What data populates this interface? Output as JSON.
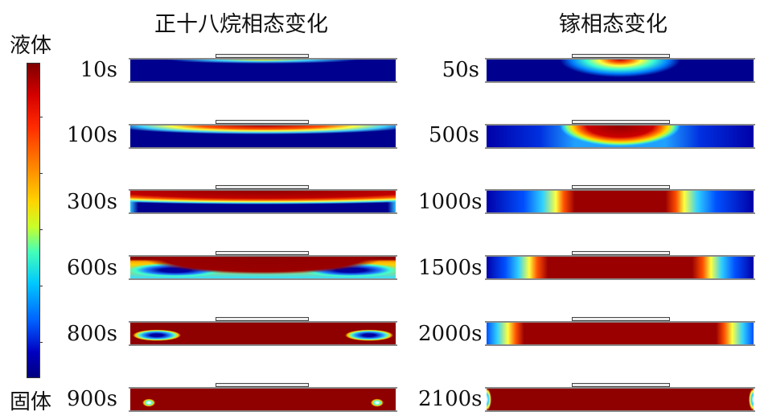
{
  "titles": {
    "left": "正十八烷相态变化",
    "right": "镓相态变化"
  },
  "colorbar": {
    "top_label": "液体",
    "bottom_label": "固体",
    "colors": [
      "#7f0000",
      "#ff0000",
      "#ff8000",
      "#ffff00",
      "#00ffff",
      "#0000ff",
      "#00007f"
    ]
  },
  "left_column": {
    "material": "正十八烷",
    "rows": [
      {
        "time": "10s"
      },
      {
        "time": "100s"
      },
      {
        "time": "300s"
      },
      {
        "time": "600s"
      },
      {
        "time": "800s"
      },
      {
        "time": "900s"
      }
    ]
  },
  "right_column": {
    "material": "镓",
    "rows": [
      {
        "time": "50s"
      },
      {
        "time": "500s"
      },
      {
        "time": "1000s"
      },
      {
        "time": "1500s"
      },
      {
        "time": "2000s"
      },
      {
        "time": "2100s"
      }
    ]
  }
}
